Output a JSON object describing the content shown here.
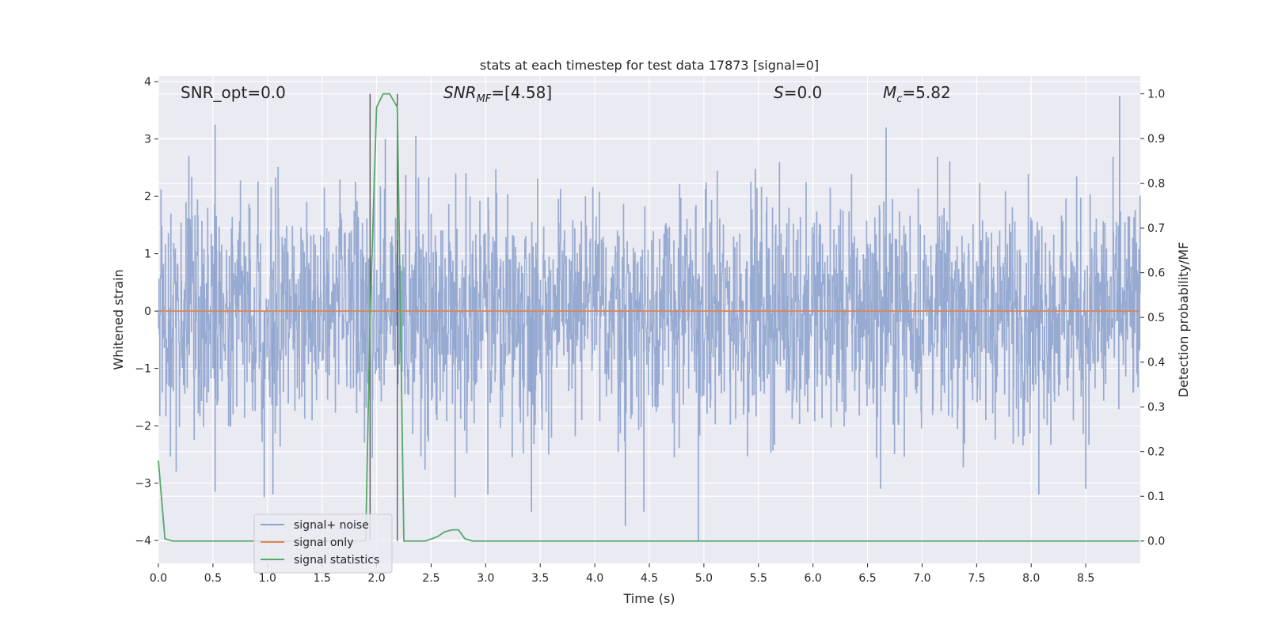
{
  "chart_data": {
    "type": "line",
    "title": "stats at each timestep for test data 17873 [signal=0]",
    "xlabel": "Time (s)",
    "ylabel_left": "Whitened strain",
    "ylabel_right": "Detection probability/MF",
    "xlim": [
      0.0,
      9.0
    ],
    "ylim_left": [
      -4.4,
      4.1
    ],
    "ylim_right": [
      -0.05,
      1.04
    ],
    "xticks": [
      "0.0",
      "0.5",
      "1.0",
      "1.5",
      "2.0",
      "2.5",
      "3.0",
      "3.5",
      "4.0",
      "4.5",
      "5.0",
      "5.5",
      "6.0",
      "6.5",
      "7.0",
      "7.5",
      "8.0",
      "8.5"
    ],
    "yticks_left": [
      "4",
      "3",
      "2",
      "1",
      "0",
      "−1",
      "−2",
      "−3",
      "−4"
    ],
    "yticks_right": [
      "1.0",
      "0.9",
      "0.8",
      "0.7",
      "0.6",
      "0.5",
      "0.4",
      "0.3",
      "0.2",
      "0.1",
      "0.0"
    ],
    "grid": true,
    "legend_position": "lower-left",
    "annotations": {
      "snr_opt": "SNR_opt=0.0",
      "snr_mf_main": "SNR",
      "snr_mf_sub": "MF",
      "snr_mf_value": "=[4.58]",
      "s_main": "S",
      "s_value": "=0.0",
      "mc_main": "M",
      "mc_sub": "c",
      "mc_value": "=5.82"
    },
    "vertical_markers_x": [
      1.94,
      2.19
    ],
    "series": [
      {
        "name": "signal+ noise",
        "color": "#8ea3cd",
        "axis": "left",
        "kind": "noise",
        "amplitude_std": 1.0,
        "envelope": [
          -2.4,
          2.4
        ],
        "notable_peaks": [
          {
            "x": 0.52,
            "y": 3.25
          },
          {
            "x": 0.52,
            "y": -3.15
          },
          {
            "x": 0.97,
            "y": -3.25
          },
          {
            "x": 1.05,
            "y": -3.2
          },
          {
            "x": 2.08,
            "y": 3.0
          },
          {
            "x": 2.36,
            "y": 3.05
          },
          {
            "x": 2.72,
            "y": -3.25
          },
          {
            "x": 3.02,
            "y": -3.2
          },
          {
            "x": 3.42,
            "y": -3.5
          },
          {
            "x": 4.28,
            "y": -3.75
          },
          {
            "x": 4.45,
            "y": -3.5
          },
          {
            "x": 4.95,
            "y": -4.0
          },
          {
            "x": 6.67,
            "y": 3.2
          },
          {
            "x": 6.62,
            "y": -3.1
          },
          {
            "x": 8.07,
            "y": -3.2
          },
          {
            "x": 8.5,
            "y": -3.1
          },
          {
            "x": 8.81,
            "y": 3.75
          }
        ]
      },
      {
        "name": "signal only",
        "color": "#dd8452",
        "axis": "left",
        "x": [
          0.0,
          8.99
        ],
        "y": [
          0.0,
          0.0
        ]
      },
      {
        "name": "signal statistics",
        "color": "#55a868",
        "axis": "right",
        "x": [
          0.0,
          0.06,
          0.13,
          1.9,
          1.94,
          2.0,
          2.06,
          2.12,
          2.19,
          2.25,
          2.45,
          2.56,
          2.62,
          2.69,
          2.75,
          2.81,
          2.88,
          8.99
        ],
        "y": [
          0.18,
          0.005,
          0.0,
          0.0,
          0.5,
          0.97,
          1.0,
          1.0,
          0.97,
          0.0,
          0.0,
          0.01,
          0.02,
          0.025,
          0.025,
          0.005,
          0.0,
          0.0
        ]
      }
    ]
  }
}
